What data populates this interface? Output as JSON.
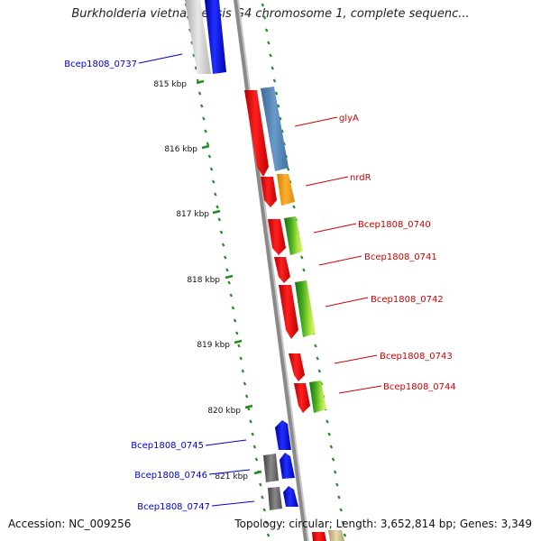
{
  "title": "Burkholderia vietnamiensis G4 chromosome 1, complete sequenc...",
  "footer": {
    "accession": "Accession: NC_009256",
    "summary": "Topology: circular; Length: 3,652,814 bp; Genes: 3,349"
  },
  "colors": {
    "forward_label": "#cc0000",
    "reverse_label": "#0000cc",
    "tick": "#228b22",
    "backbone": "#808080",
    "forward_gene": "#e80000",
    "reverse_gene": "#0000ee",
    "orthogroup_blue": "#4a7fb0",
    "orthogroup_orange": "#f0a020",
    "orthogroup_green": "#3c9e1e",
    "orthogroup_gray": "#606060"
  },
  "ruler": [
    {
      "label": "815 kbp"
    },
    {
      "label": "816 kbp"
    },
    {
      "label": "817 kbp"
    },
    {
      "label": "818 kbp"
    },
    {
      "label": "819 kbp"
    },
    {
      "label": "820 kbp"
    },
    {
      "label": "821 kbp"
    }
  ],
  "genes": [
    {
      "label": "Bcep1808_0737",
      "strand": "reverse"
    },
    {
      "label": "glyA",
      "strand": "forward"
    },
    {
      "label": "nrdR",
      "strand": "forward"
    },
    {
      "label": "Bcep1808_0740",
      "strand": "forward"
    },
    {
      "label": "Bcep1808_0741",
      "strand": "forward"
    },
    {
      "label": "Bcep1808_0742",
      "strand": "forward"
    },
    {
      "label": "Bcep1808_0743",
      "strand": "forward"
    },
    {
      "label": "Bcep1808_0744",
      "strand": "forward"
    },
    {
      "label": "Bcep1808_0745",
      "strand": "reverse"
    },
    {
      "label": "Bcep1808_0746",
      "strand": "reverse"
    },
    {
      "label": "Bcep1808_0747",
      "strand": "reverse"
    }
  ]
}
